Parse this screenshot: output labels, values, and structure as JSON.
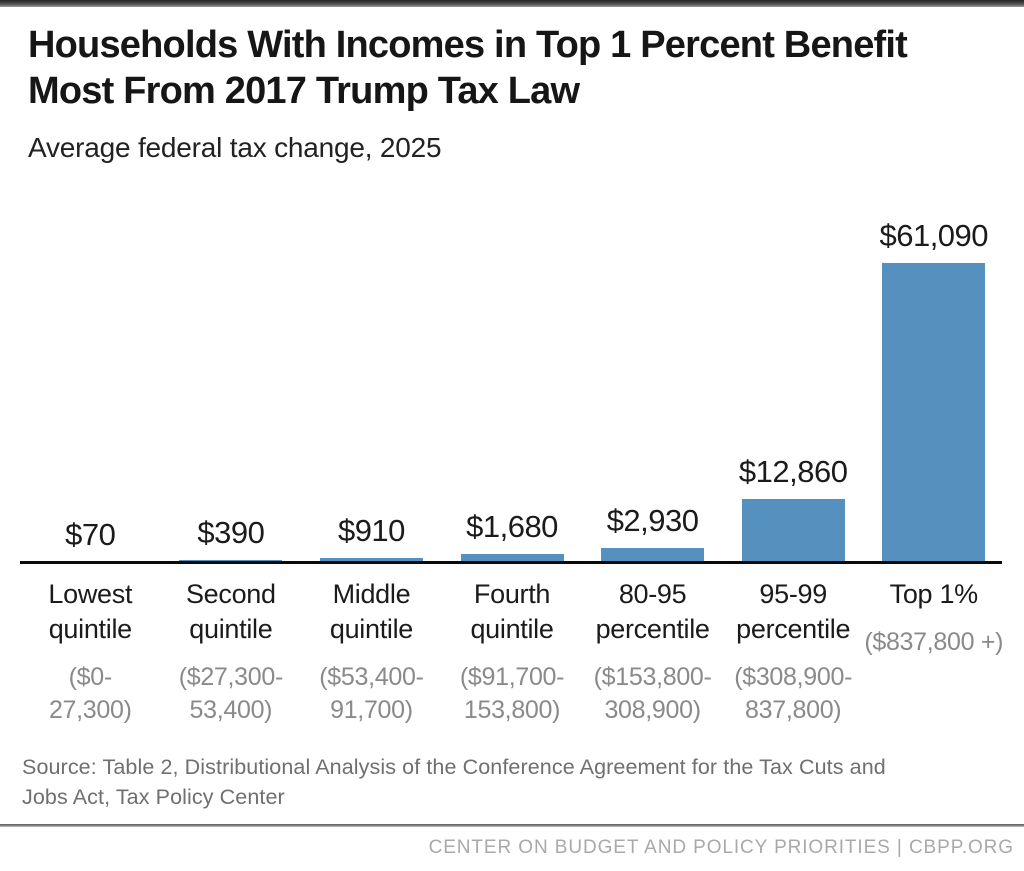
{
  "header": {
    "title": "Households With Incomes in Top 1 Percent Benefit Most From 2017 Trump Tax Law",
    "subtitle": "Average federal tax change, 2025"
  },
  "chart_data": {
    "type": "bar",
    "title": "Households With Incomes in Top 1 Percent Benefit Most From 2017 Trump Tax Law",
    "subtitle": "Average federal tax change, 2025",
    "unit": "US dollars",
    "bar_color": "#5590be",
    "baseline_color": "#0a0a0a",
    "ylim": [
      0,
      61090
    ],
    "grid": false,
    "legend": false,
    "categories": [
      "Lowest quintile",
      "Second quintile",
      "Middle quintile",
      "Fourth quintile",
      "80-95 percentile",
      "95-99 percentile",
      "Top 1%"
    ],
    "values": [
      70,
      390,
      910,
      1680,
      2930,
      12860,
      61090
    ],
    "income_ranges": [
      "($0-27,300)",
      "($27,300-53,400)",
      "($53,400-91,700)",
      "($91,700-153,800)",
      "($153,800-308,900)",
      "($308,900-837,800)",
      "($837,800 +)"
    ],
    "items": [
      {
        "value": 70,
        "value_label": "$70",
        "label_lines": [
          "Lowest",
          "quintile"
        ],
        "range_lines": [
          "($0-",
          "27,300)"
        ]
      },
      {
        "value": 390,
        "value_label": "$390",
        "label_lines": [
          "Second",
          "quintile"
        ],
        "range_lines": [
          "($27,300-",
          "53,400)"
        ]
      },
      {
        "value": 910,
        "value_label": "$910",
        "label_lines": [
          "Middle",
          "quintile"
        ],
        "range_lines": [
          "($53,400-",
          "91,700)"
        ]
      },
      {
        "value": 1680,
        "value_label": "$1,680",
        "label_lines": [
          "Fourth",
          "quintile"
        ],
        "range_lines": [
          "($91,700-",
          "153,800)"
        ]
      },
      {
        "value": 2930,
        "value_label": "$2,930",
        "label_lines": [
          "80-95",
          "percentile"
        ],
        "range_lines": [
          "($153,800-",
          "308,900)"
        ]
      },
      {
        "value": 12860,
        "value_label": "$12,860",
        "label_lines": [
          "95-99",
          "percentile"
        ],
        "range_lines": [
          "($308,900-",
          "837,800)"
        ]
      },
      {
        "value": 61090,
        "value_label": "$61,090",
        "label_lines": [
          "Top 1%"
        ],
        "range_lines": [
          "($837,800 +)"
        ]
      }
    ]
  },
  "source": {
    "lines": [
      "Source: Table 2, Distributional Analysis of the Conference Agreement for the Tax Cuts and",
      "Jobs Act, Tax Policy Center"
    ],
    "full_text": "Source: Table 2, Distributional Analysis of the Conference Agreement for the Tax Cuts and Jobs Act, Tax Policy Center"
  },
  "footer": {
    "text": "CENTER ON BUDGET AND POLICY PRIORITIES | CBPP.ORG"
  }
}
